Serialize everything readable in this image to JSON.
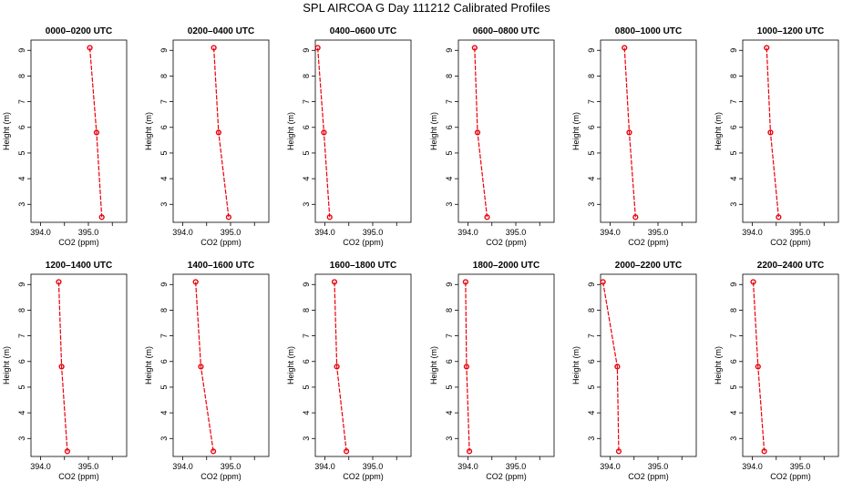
{
  "figure": {
    "title": "SPL AIRCOA G  Day 111212  Calibrated Profiles"
  },
  "chart_data": {
    "type": "line",
    "xlabel": "CO2 (ppm)",
    "ylabel": "Height (m)",
    "xlim": [
      393.8,
      395.8
    ],
    "ylim": [
      2.3,
      9.4
    ],
    "xticks": [
      {
        "value": 394.0,
        "label": "394.0"
      },
      {
        "value": 395.0,
        "label": "395.0"
      }
    ],
    "xtick_minor": [
      394.5,
      395.5
    ],
    "yticks": [
      3,
      4,
      5,
      6,
      7,
      8,
      9
    ],
    "heights": [
      9.1,
      5.8,
      2.5
    ],
    "line_color": "#e8000b",
    "marker_color": "#e8000b",
    "panels": [
      {
        "title": "0000–0200 UTC",
        "values": [
          395.03,
          395.17,
          395.28
        ]
      },
      {
        "title": "0200–0400 UTC",
        "values": [
          394.65,
          394.75,
          394.96
        ]
      },
      {
        "title": "0400–0600 UTC",
        "values": [
          393.85,
          393.98,
          394.1
        ]
      },
      {
        "title": "0600–0800 UTC",
        "values": [
          394.14,
          394.2,
          394.4
        ]
      },
      {
        "title": "0800–1000 UTC",
        "values": [
          394.3,
          394.4,
          394.53
        ]
      },
      {
        "title": "1000–1200 UTC",
        "values": [
          394.3,
          394.38,
          394.55
        ]
      },
      {
        "title": "1200–1400 UTC",
        "values": [
          394.38,
          394.44,
          394.56
        ]
      },
      {
        "title": "1400–1600 UTC",
        "values": [
          394.27,
          394.38,
          394.64
        ]
      },
      {
        "title": "1600–1800 UTC",
        "values": [
          394.2,
          394.25,
          394.45
        ]
      },
      {
        "title": "1800–2000 UTC",
        "values": [
          393.95,
          393.97,
          394.03
        ]
      },
      {
        "title": "2000–2200 UTC",
        "values": [
          393.85,
          394.15,
          394.18
        ]
      },
      {
        "title": "2200–2400 UTC",
        "values": [
          394.02,
          394.12,
          394.25
        ]
      }
    ]
  }
}
